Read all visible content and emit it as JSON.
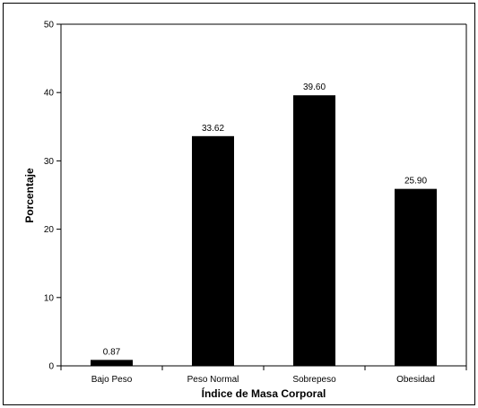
{
  "chart_data": {
    "type": "bar",
    "title": "",
    "xlabel": "Índice de Masa Corporal",
    "ylabel": "Porcentaje",
    "categories": [
      "Bajo Peso",
      "Peso Normal",
      "Sobrepeso",
      "Obesidad"
    ],
    "values": [
      0.87,
      33.62,
      39.6,
      25.9
    ],
    "data_labels": [
      "0.87",
      "33.62",
      "39.60",
      "25.90"
    ],
    "ylim": [
      0,
      50
    ],
    "yticks": [
      0,
      10,
      20,
      30,
      40,
      50
    ],
    "grid": false,
    "legend": "none",
    "bar_color": "#000000"
  }
}
